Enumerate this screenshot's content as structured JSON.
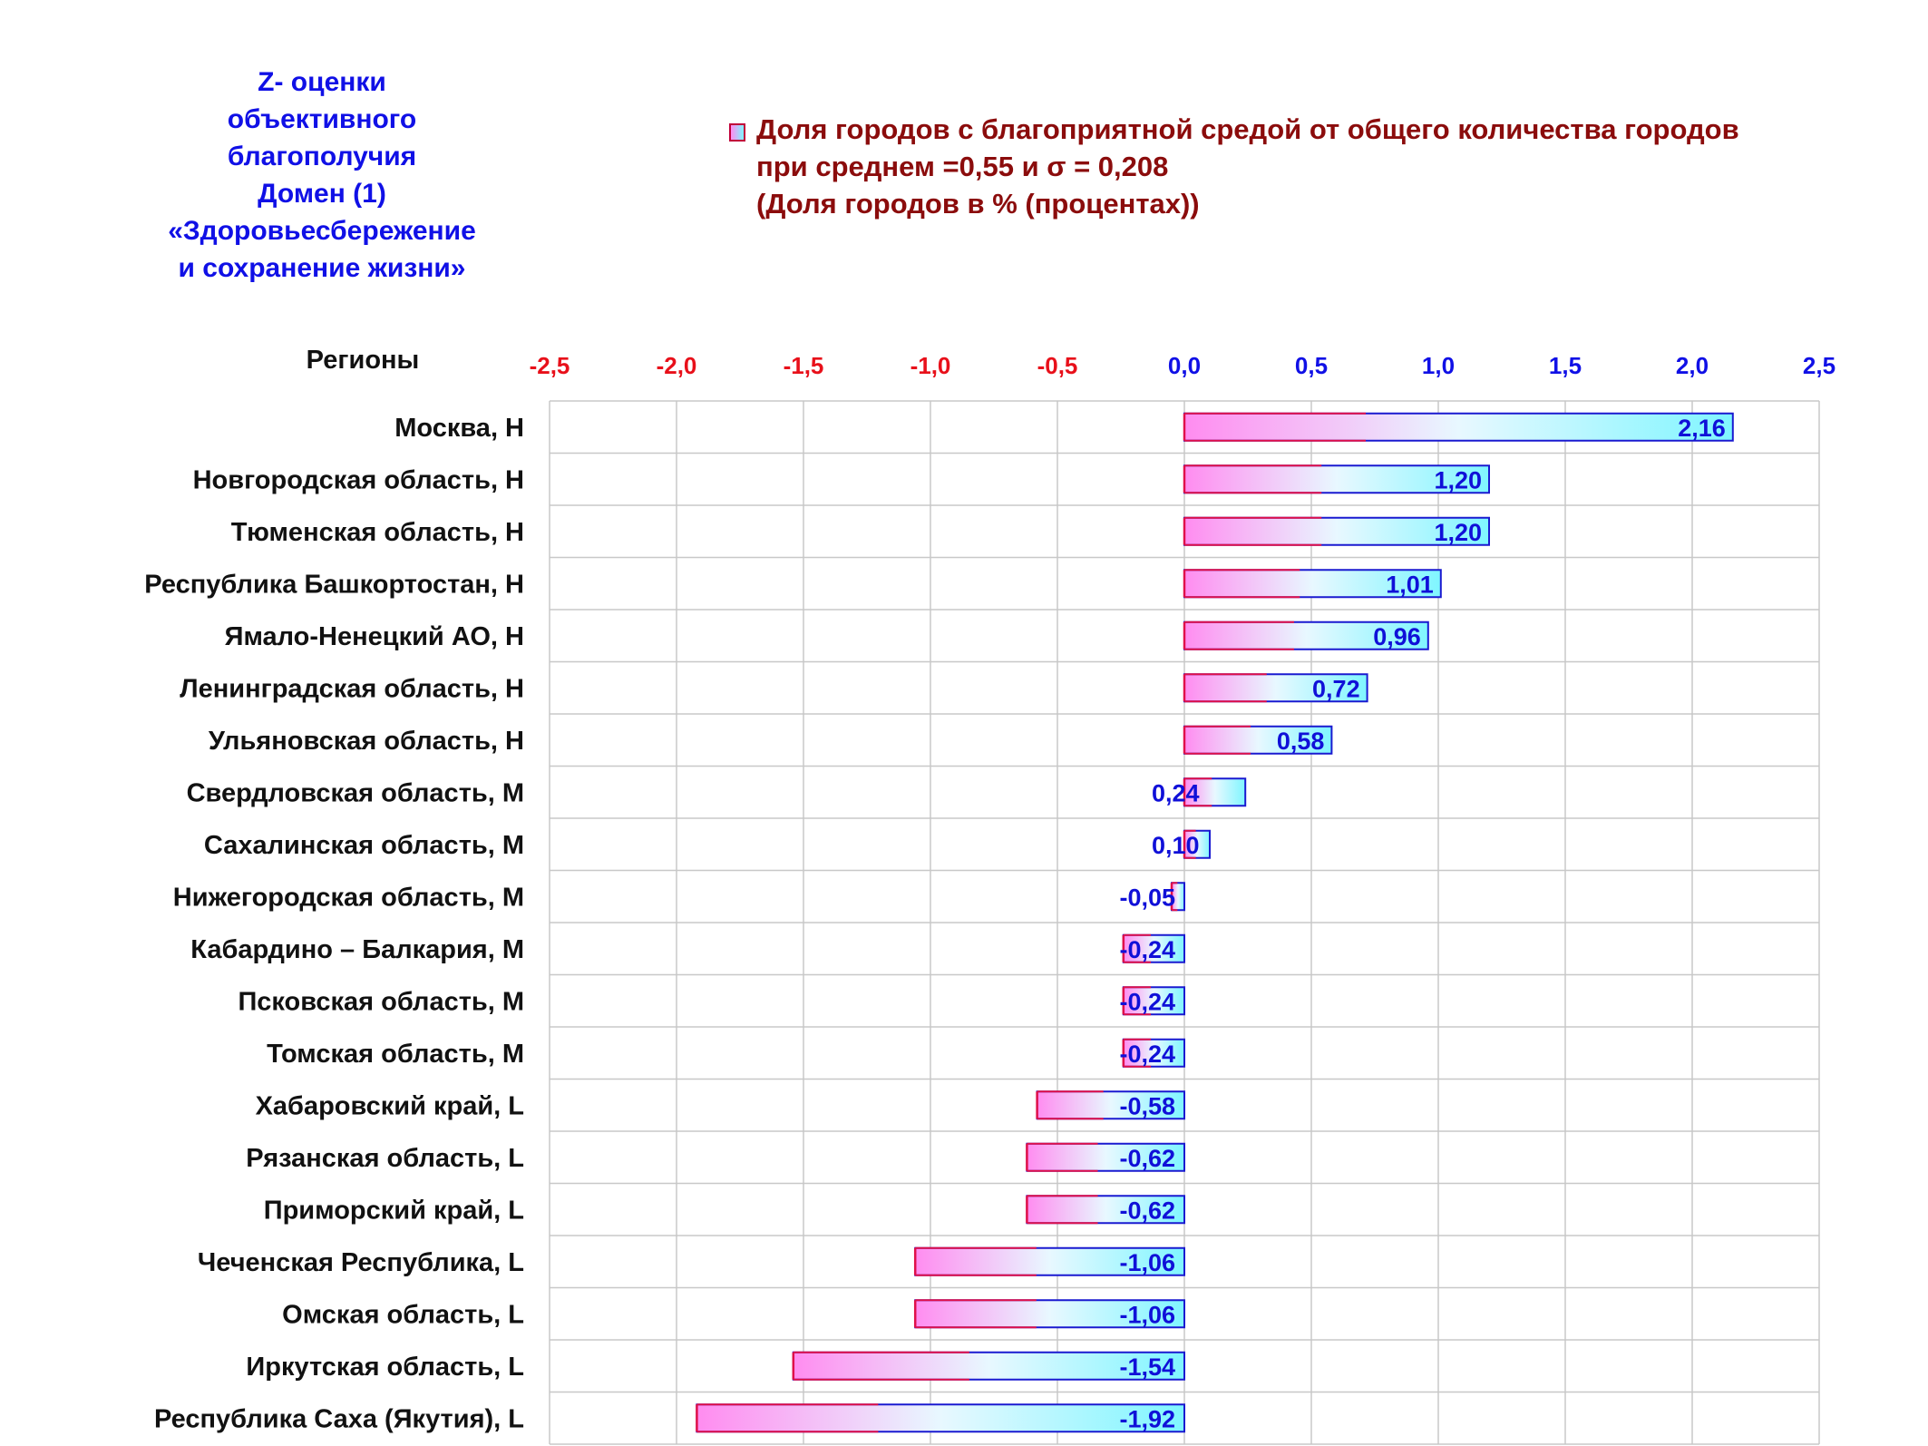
{
  "title": {
    "lines": [
      "Z- оценки",
      "объективного",
      "благополучия",
      "Домен (1)",
      "«Здоровьесбережение",
      "и сохранение жизни»"
    ]
  },
  "legend": {
    "lines": [
      "Доля городов с благоприятной средой от общего количества городов",
      "при среднем =0,55  и σ = 0,208",
      "(Доля городов в % (процентах))"
    ]
  },
  "colors": {
    "title": "#1010e6",
    "legend": "#8b0c0c",
    "negative_ticks": "#e8101a",
    "positive_ticks": "#1010e6",
    "bar_left": "#ff8cf0",
    "bar_right": "#7ff6ff",
    "bar_border_pink": "#e0104a",
    "bar_border_blue": "#1a1ad0",
    "value_labels": "#1010d8"
  },
  "chart_data": {
    "type": "bar",
    "orientation": "horizontal",
    "category_axis_label": "Регионы",
    "categories": [
      "Москва,  Н",
      "Новгородская область,  Н",
      "Тюменская область,  Н",
      "Республика Башкортостан,  Н",
      "Ямало-Ненецкий АО,  Н",
      "Ленинградская область,  Н",
      "Ульяновская область,  Н",
      "Свердловская область,  М",
      "Сахалинская область,  М",
      "Нижегородская область,  М",
      "Кабардино – Балкария,  М",
      "Псковская область,  М",
      "Томская область,  М",
      "Хабаровский край,  L",
      "Рязанская область,  L",
      "Приморский край,  L",
      "Чеченская Республика,  L",
      "Омская область,  L",
      "Иркутская область,  L",
      "Республика Саха (Якутия),  L"
    ],
    "values": [
      2.16,
      1.2,
      1.2,
      1.01,
      0.96,
      0.72,
      0.58,
      0.24,
      0.1,
      -0.05,
      -0.24,
      -0.24,
      -0.24,
      -0.58,
      -0.62,
      -0.62,
      -1.06,
      -1.06,
      -1.54,
      -1.92
    ],
    "value_labels": [
      "2,16",
      "1,20",
      "1,20",
      "1,01",
      "0,96",
      "0,72",
      "0,58",
      "0,24",
      "0,10",
      "-0,05",
      "-0,24",
      "-0,24",
      "-0,24",
      "-0,58",
      "-0,62",
      "-0,62",
      "-1,06",
      "-1,06",
      "-1,54",
      "-1,92"
    ],
    "xlim": [
      -2.5,
      2.5
    ],
    "x_ticks": [
      -2.5,
      -2.0,
      -1.5,
      -1.0,
      -0.5,
      0.0,
      0.5,
      1.0,
      1.5,
      2.0,
      2.5
    ],
    "x_tick_labels": [
      "-2,5",
      "-2,0",
      "-1,5",
      "-1,0",
      "-0,5",
      "0,0",
      "0,5",
      "1,0",
      "1,5",
      "2,0",
      "2,5"
    ],
    "x_axis_position": "top",
    "grid": true,
    "legend_position": "top"
  }
}
